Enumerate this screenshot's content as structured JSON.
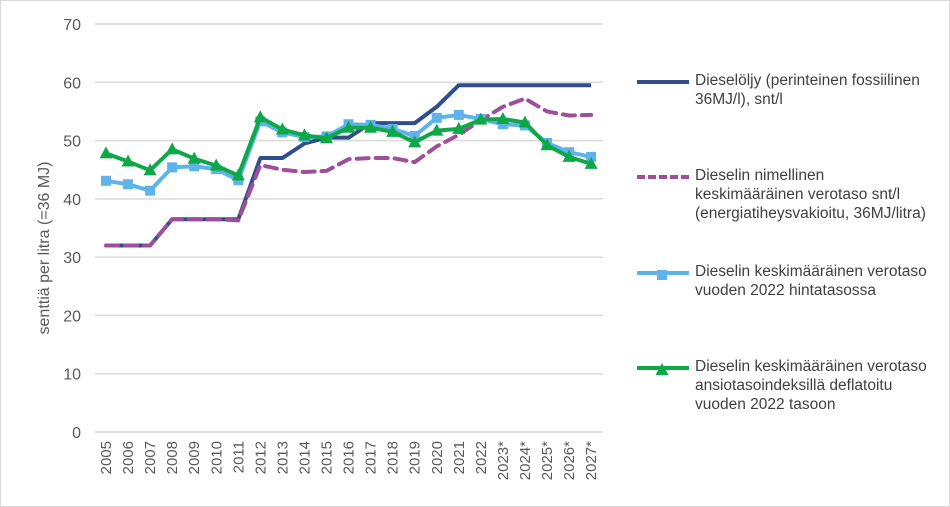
{
  "chart_data": {
    "type": "line",
    "title": "",
    "xlabel": "",
    "ylabel": "senttiä per litra (=36 MJ)",
    "ylim": [
      0,
      70
    ],
    "yticks": [
      0,
      10,
      20,
      30,
      40,
      50,
      60,
      70
    ],
    "grid": true,
    "legend_position": "right",
    "categories": [
      "2005",
      "2006",
      "2007",
      "2008",
      "2009",
      "2010",
      "2011",
      "2012",
      "2013",
      "2014",
      "2015",
      "2016",
      "2017",
      "2018",
      "2019",
      "2020",
      "2021",
      "2022",
      "2023*",
      "2024*",
      "2025*",
      "2026*",
      "2027*"
    ],
    "series": [
      {
        "name": "Dieselöljy (perinteinen fossiilinen 36MJ/l), snt/l",
        "color": "#2f4f8a",
        "style": "solid",
        "marker": "none",
        "values": [
          32,
          32,
          32,
          36.5,
          36.5,
          36.5,
          36.5,
          47,
          47,
          49.5,
          50.5,
          50.5,
          53,
          53,
          53,
          55.8,
          59.5,
          59.5,
          59.5,
          59.5,
          59.5,
          59.5,
          59.5
        ]
      },
      {
        "name": "Dieselin nimellinen keskimääräinen verotaso snt/l (energiatiheysvakioitu, 36MJ/litra)",
        "color": "#9e4f9b",
        "style": "dashed",
        "marker": "none",
        "values": [
          32,
          32,
          32,
          36.5,
          36.5,
          36.5,
          36.3,
          45.8,
          45,
          44.6,
          44.8,
          46.8,
          47,
          47,
          46.3,
          49,
          51,
          53.5,
          55.8,
          57.2,
          55,
          54.3,
          54.4
        ]
      },
      {
        "name": "Dieselin keskimääräinen verotaso vuoden 2022 hintatasossa",
        "color": "#5db3ea",
        "style": "solid",
        "marker": "square",
        "values": [
          43.1,
          42.5,
          41.4,
          45.4,
          45.6,
          45.1,
          43.2,
          53.3,
          51.4,
          50.6,
          50.7,
          52.8,
          52.7,
          52,
          50.8,
          53.9,
          54.4,
          53.7,
          52.8,
          52.6,
          49.6,
          48,
          47.2
        ]
      },
      {
        "name": "Dieselin keskimääräinen verotaso ansiotasoindeksillä deflatoitu vuoden 2022 tasoon",
        "color": "#0fa848",
        "style": "solid",
        "marker": "triangle",
        "values": [
          47.8,
          46.4,
          44.9,
          48.5,
          46.9,
          45.7,
          44,
          54,
          51.9,
          50.9,
          50.4,
          52.2,
          52.2,
          51.5,
          49.7,
          51.7,
          52,
          53.6,
          53.7,
          53.1,
          49.2,
          47.2,
          46
        ]
      }
    ]
  }
}
